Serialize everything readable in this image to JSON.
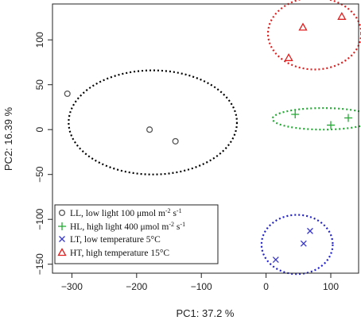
{
  "chart_data": {
    "type": "scatter",
    "xlabel": "PC1: 37.2 %",
    "ylabel": "PC2: 16.39 %",
    "xlim": [
      -330,
      143
    ],
    "ylim": [
      -160,
      140
    ],
    "xticks": [
      -300,
      -200,
      -100,
      0,
      100
    ],
    "yticks": [
      -150,
      -100,
      -50,
      0,
      50,
      100
    ],
    "xtick_labels": [
      "−300",
      "−200",
      "−100",
      "0",
      "100"
    ],
    "ytick_labels": [
      "−150",
      "−100",
      "−50",
      "0",
      "50",
      "100"
    ],
    "grid": false,
    "legend_position": "bottom-left",
    "series": [
      {
        "name_parts": [
          "LL, low light 100 μmol m",
          "-2",
          " s",
          "-1"
        ],
        "marker": "circle",
        "color": "#555555",
        "points": [
          {
            "x": -307,
            "y": 40
          },
          {
            "x": -180,
            "y": 0
          },
          {
            "x": -140,
            "y": -13
          }
        ],
        "ellipse": {
          "cx": -175,
          "cy": 8,
          "rx": 130,
          "ry": 58,
          "color": "#000000"
        }
      },
      {
        "name_parts": [
          "HL, high light 400 μmol m",
          "-2",
          " s",
          "-1"
        ],
        "marker": "plus",
        "color": "#22aa33",
        "points": [
          {
            "x": 45,
            "y": 17
          },
          {
            "x": 100,
            "y": 5
          },
          {
            "x": 127,
            "y": 13
          }
        ],
        "ellipse": {
          "cx": 88,
          "cy": 12,
          "rx": 78,
          "ry": 12,
          "color": "#22aa33"
        }
      },
      {
        "name_parts": [
          "LT, low temperature 5°C"
        ],
        "marker": "cross",
        "color": "#3a3ac8",
        "points": [
          {
            "x": 15,
            "y": -145
          },
          {
            "x": 58,
            "y": -127
          },
          {
            "x": 68,
            "y": -113
          }
        ],
        "ellipse": {
          "cx": 48,
          "cy": -128,
          "rx": 55,
          "ry": 33,
          "color": "#2020cc"
        }
      },
      {
        "name_parts": [
          "HT, high temperature 15°C"
        ],
        "marker": "triangle",
        "color": "#e02020",
        "points": [
          {
            "x": 35,
            "y": 80
          },
          {
            "x": 57,
            "y": 114
          },
          {
            "x": 117,
            "y": 126
          }
        ],
        "ellipse": {
          "cx": 75,
          "cy": 107,
          "rx": 72,
          "ry": 40,
          "color": "#e02020"
        }
      }
    ]
  }
}
